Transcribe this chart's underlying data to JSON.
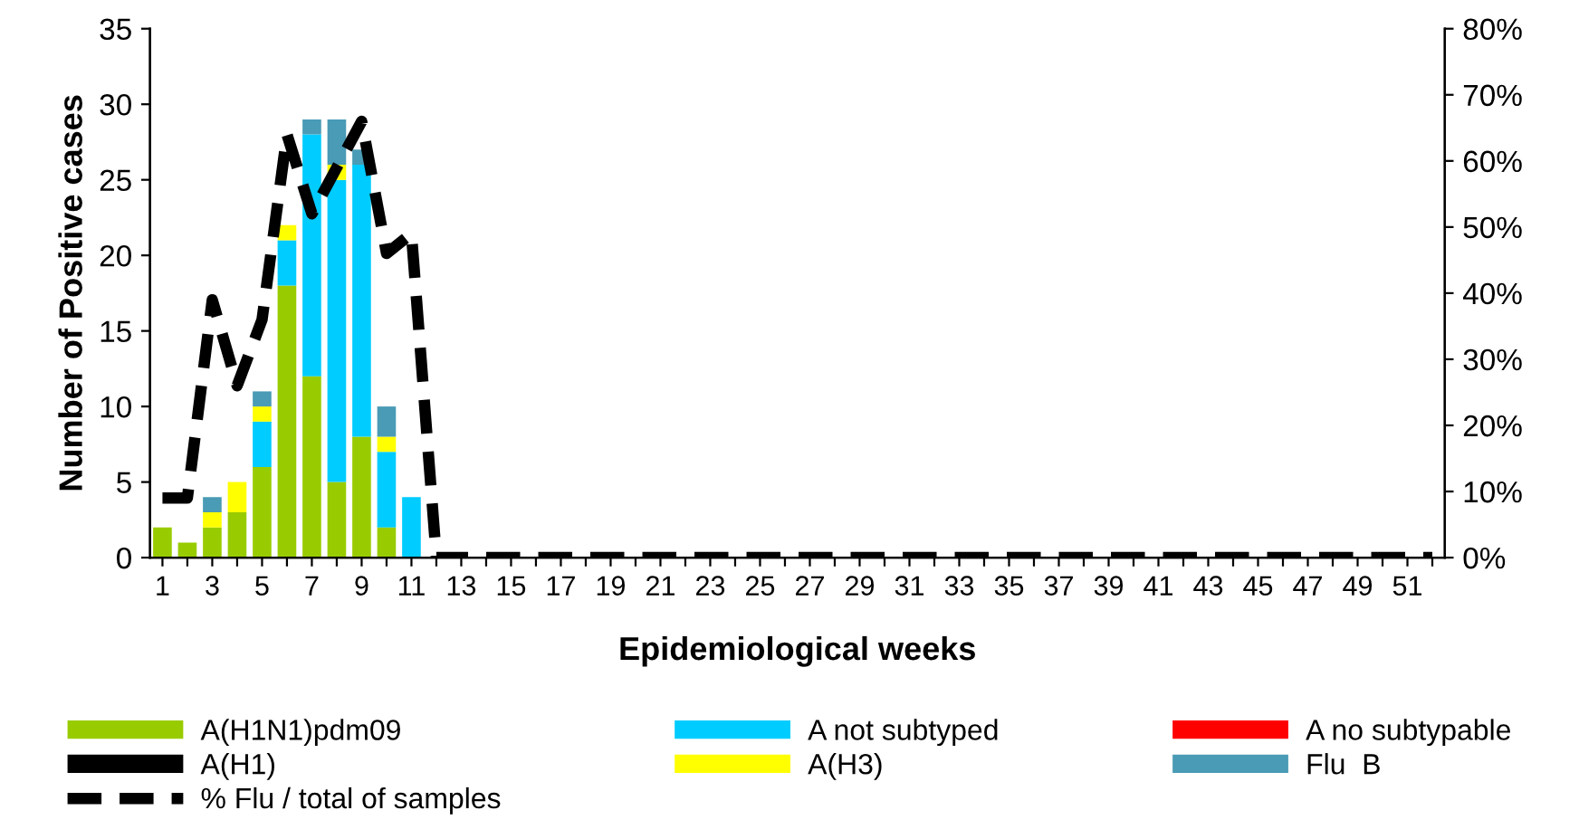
{
  "chart_data": {
    "type": "bar",
    "stacked": true,
    "xlabel": "Epidemiological weeks",
    "ylabel": "Number of Positive cases",
    "categories": [
      "1",
      null,
      "3",
      null,
      "5",
      null,
      "7",
      null,
      "9",
      null,
      "11",
      null,
      "13",
      null,
      "15",
      null,
      "17",
      null,
      "19",
      null,
      "21",
      null,
      "23",
      null,
      "25",
      null,
      "27",
      null,
      "29",
      null,
      "31",
      null,
      "33",
      null,
      "35",
      null,
      "37",
      null,
      "39",
      null,
      "41",
      null,
      "43",
      null,
      "45",
      null,
      "47",
      null,
      "49",
      null,
      "51",
      null
    ],
    "ylim": [
      0,
      35
    ],
    "yticks": [
      0,
      5,
      10,
      15,
      20,
      25,
      30,
      35
    ],
    "y2lim": [
      0,
      80
    ],
    "y2ticks": [
      {
        "value": 0,
        "label": "0%"
      },
      {
        "value": 10,
        "label": "10%"
      },
      {
        "value": 20,
        "label": "20%"
      },
      {
        "value": 30,
        "label": "30%"
      },
      {
        "value": 40,
        "label": "40%"
      },
      {
        "value": 50,
        "label": "50%"
      },
      {
        "value": 60,
        "label": "60%"
      },
      {
        "value": 70,
        "label": "70%"
      },
      {
        "value": 80,
        "label": "80%"
      }
    ],
    "grid": false,
    "legend": "bottom",
    "series": [
      {
        "name": "A(H1N1)pdm09",
        "color": "#99cc00",
        "values": [
          2,
          1,
          2,
          3,
          6,
          18,
          12,
          5,
          8,
          2,
          0,
          0,
          0,
          0,
          0,
          0,
          0,
          0,
          0,
          0,
          0,
          0,
          0,
          0,
          0,
          0,
          0,
          0,
          0,
          0,
          0,
          0,
          0,
          0,
          0,
          0,
          0,
          0,
          0,
          0,
          0,
          0,
          0,
          0,
          0,
          0,
          0,
          0,
          0,
          0,
          0,
          0
        ]
      },
      {
        "name": "A not subtyped",
        "color": "#00ccff",
        "values": [
          0,
          0,
          0,
          0,
          3,
          3,
          16,
          20,
          18,
          5,
          4,
          0,
          0,
          0,
          0,
          0,
          0,
          0,
          0,
          0,
          0,
          0,
          0,
          0,
          0,
          0,
          0,
          0,
          0,
          0,
          0,
          0,
          0,
          0,
          0,
          0,
          0,
          0,
          0,
          0,
          0,
          0,
          0,
          0,
          0,
          0,
          0,
          0,
          0,
          0,
          0,
          0
        ]
      },
      {
        "name": "A no subtypable",
        "color": "#ff0000",
        "values": [
          0,
          0,
          0,
          0,
          0,
          0,
          0,
          0,
          0,
          0,
          0,
          0,
          0,
          0,
          0,
          0,
          0,
          0,
          0,
          0,
          0,
          0,
          0,
          0,
          0,
          0,
          0,
          0,
          0,
          0,
          0,
          0,
          0,
          0,
          0,
          0,
          0,
          0,
          0,
          0,
          0,
          0,
          0,
          0,
          0,
          0,
          0,
          0,
          0,
          0,
          0,
          0
        ]
      },
      {
        "name": "A(H1)",
        "color": "#000000",
        "values": [
          0,
          0,
          0,
          0,
          0,
          0,
          0,
          0,
          0,
          0,
          0,
          0,
          0,
          0,
          0,
          0,
          0,
          0,
          0,
          0,
          0,
          0,
          0,
          0,
          0,
          0,
          0,
          0,
          0,
          0,
          0,
          0,
          0,
          0,
          0,
          0,
          0,
          0,
          0,
          0,
          0,
          0,
          0,
          0,
          0,
          0,
          0,
          0,
          0,
          0,
          0,
          0
        ]
      },
      {
        "name": "A(H3)",
        "color": "#ffff00",
        "values": [
          0,
          0,
          1,
          2,
          1,
          1,
          0,
          1,
          0,
          1,
          0,
          0,
          0,
          0,
          0,
          0,
          0,
          0,
          0,
          0,
          0,
          0,
          0,
          0,
          0,
          0,
          0,
          0,
          0,
          0,
          0,
          0,
          0,
          0,
          0,
          0,
          0,
          0,
          0,
          0,
          0,
          0,
          0,
          0,
          0,
          0,
          0,
          0,
          0,
          0,
          0,
          0
        ]
      },
      {
        "name": "Flu  B",
        "color": "#4a9bb5",
        "values": [
          0,
          0,
          1,
          0,
          1,
          0,
          1,
          3,
          1,
          2,
          0,
          0,
          0,
          0,
          0,
          0,
          0,
          0,
          0,
          0,
          0,
          0,
          0,
          0,
          0,
          0,
          0,
          0,
          0,
          0,
          0,
          0,
          0,
          0,
          0,
          0,
          0,
          0,
          0,
          0,
          0,
          0,
          0,
          0,
          0,
          0,
          0,
          0,
          0,
          0,
          0,
          0
        ]
      },
      {
        "name": "% Flu / total of samples",
        "type": "line",
        "axis": "y2",
        "color": "#000000",
        "line_style": "dashed",
        "marker": "none",
        "values": [
          9,
          9,
          39,
          26,
          36,
          64,
          52,
          59,
          66,
          46,
          49,
          0,
          0,
          0,
          0,
          0,
          0,
          0,
          0,
          0,
          0,
          0,
          0,
          0,
          0,
          0,
          0,
          0,
          0,
          0,
          0,
          0,
          0,
          0,
          0,
          0,
          0,
          0,
          0,
          0,
          0,
          0,
          0,
          0,
          0,
          0,
          0,
          0,
          0,
          0,
          0,
          0
        ]
      }
    ]
  }
}
